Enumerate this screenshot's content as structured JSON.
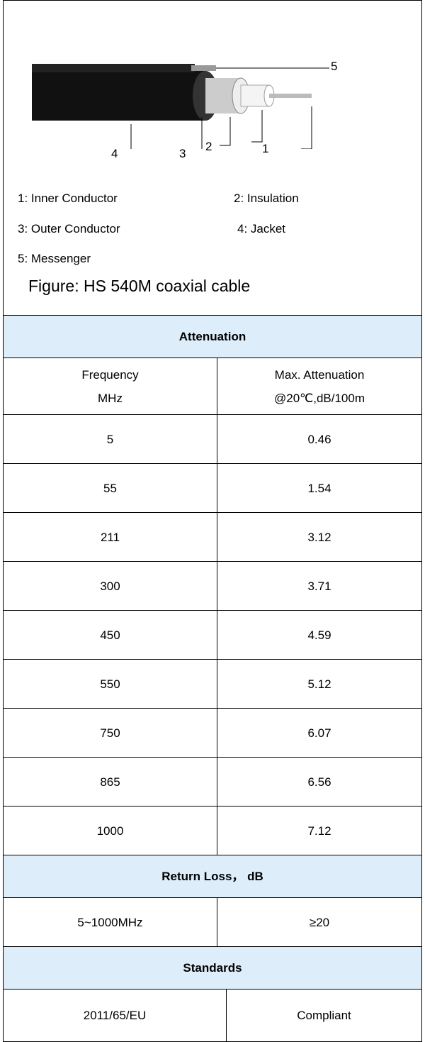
{
  "figure": {
    "callouts": [
      "1",
      "2",
      "3",
      "4",
      "5"
    ],
    "legend": [
      "1: Inner Conductor",
      "2: Insulation",
      "3: Outer Conductor",
      "4: Jacket",
      "5: Messenger"
    ],
    "caption": "Figure: HS 540M coaxial cable"
  },
  "attenuation": {
    "title": "Attenuation",
    "header": [
      [
        "Frequency",
        "MHz"
      ],
      [
        "Max. Attenuation",
        "@20℃,dB/100m"
      ]
    ],
    "rows": [
      [
        "5",
        "0.46"
      ],
      [
        "55",
        "1.54"
      ],
      [
        "211",
        "3.12"
      ],
      [
        "300",
        "3.71"
      ],
      [
        "450",
        "4.59"
      ],
      [
        "550",
        "5.12"
      ],
      [
        "750",
        "6.07"
      ],
      [
        "865",
        "6.56"
      ],
      [
        "1000",
        "7.12"
      ]
    ]
  },
  "return_loss": {
    "title": "Return Loss， dB",
    "row": [
      "5~1000MHz",
      "≥20"
    ]
  },
  "standards": {
    "title": "Standards",
    "row": [
      "2011/65/EU",
      "Compliant"
    ]
  }
}
